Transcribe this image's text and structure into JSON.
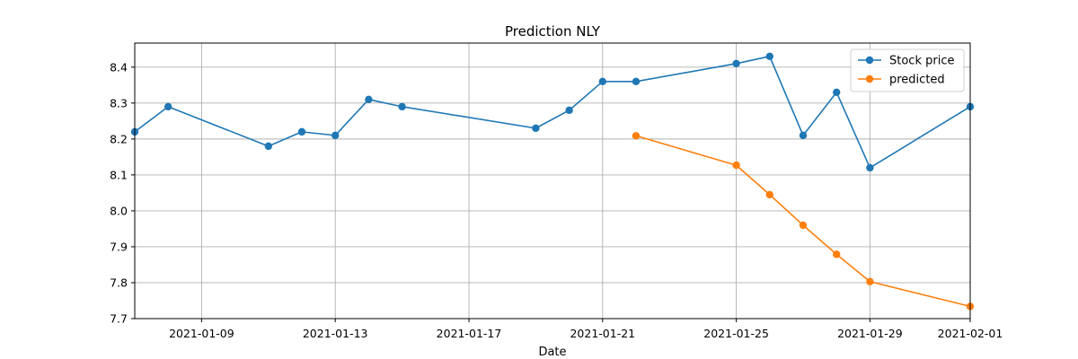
{
  "chart_data": {
    "type": "line",
    "title": "Prediction NLY",
    "xlabel": "Date",
    "ylabel": "",
    "xlim": [
      "2021-01-07",
      "2021-02-01"
    ],
    "ylim": [
      7.7,
      8.467
    ],
    "grid": true,
    "legend_position": "top-right",
    "x_ticks": [
      "2021-01-09",
      "2021-01-13",
      "2021-01-17",
      "2021-01-21",
      "2021-01-25",
      "2021-01-29",
      "2021-02-01"
    ],
    "y_ticks": [
      7.7,
      7.8,
      7.9,
      8.0,
      8.1,
      8.2,
      8.3,
      8.4
    ],
    "series": [
      {
        "name": "Stock price",
        "color": "#1f77b4",
        "marker": "circle",
        "points": [
          {
            "x": "2021-01-07",
            "y": 8.22
          },
          {
            "x": "2021-01-08",
            "y": 8.29
          },
          {
            "x": "2021-01-11",
            "y": 8.18
          },
          {
            "x": "2021-01-12",
            "y": 8.22
          },
          {
            "x": "2021-01-13",
            "y": 8.21
          },
          {
            "x": "2021-01-14",
            "y": 8.31
          },
          {
            "x": "2021-01-15",
            "y": 8.29
          },
          {
            "x": "2021-01-19",
            "y": 8.23
          },
          {
            "x": "2021-01-20",
            "y": 8.28
          },
          {
            "x": "2021-01-21",
            "y": 8.36
          },
          {
            "x": "2021-01-22",
            "y": 8.36
          },
          {
            "x": "2021-01-25",
            "y": 8.41
          },
          {
            "x": "2021-01-26",
            "y": 8.43
          },
          {
            "x": "2021-01-27",
            "y": 8.21
          },
          {
            "x": "2021-01-28",
            "y": 8.33
          },
          {
            "x": "2021-01-29",
            "y": 8.12
          },
          {
            "x": "2021-02-01",
            "y": 8.29
          }
        ]
      },
      {
        "name": "predicted",
        "color": "#ff7f0e",
        "marker": "circle",
        "points": [
          {
            "x": "2021-01-22",
            "y": 8.209
          },
          {
            "x": "2021-01-25",
            "y": 8.127
          },
          {
            "x": "2021-01-26",
            "y": 8.045
          },
          {
            "x": "2021-01-27",
            "y": 7.96
          },
          {
            "x": "2021-01-28",
            "y": 7.879
          },
          {
            "x": "2021-01-29",
            "y": 7.803
          },
          {
            "x": "2021-02-01",
            "y": 7.734
          }
        ]
      }
    ]
  }
}
